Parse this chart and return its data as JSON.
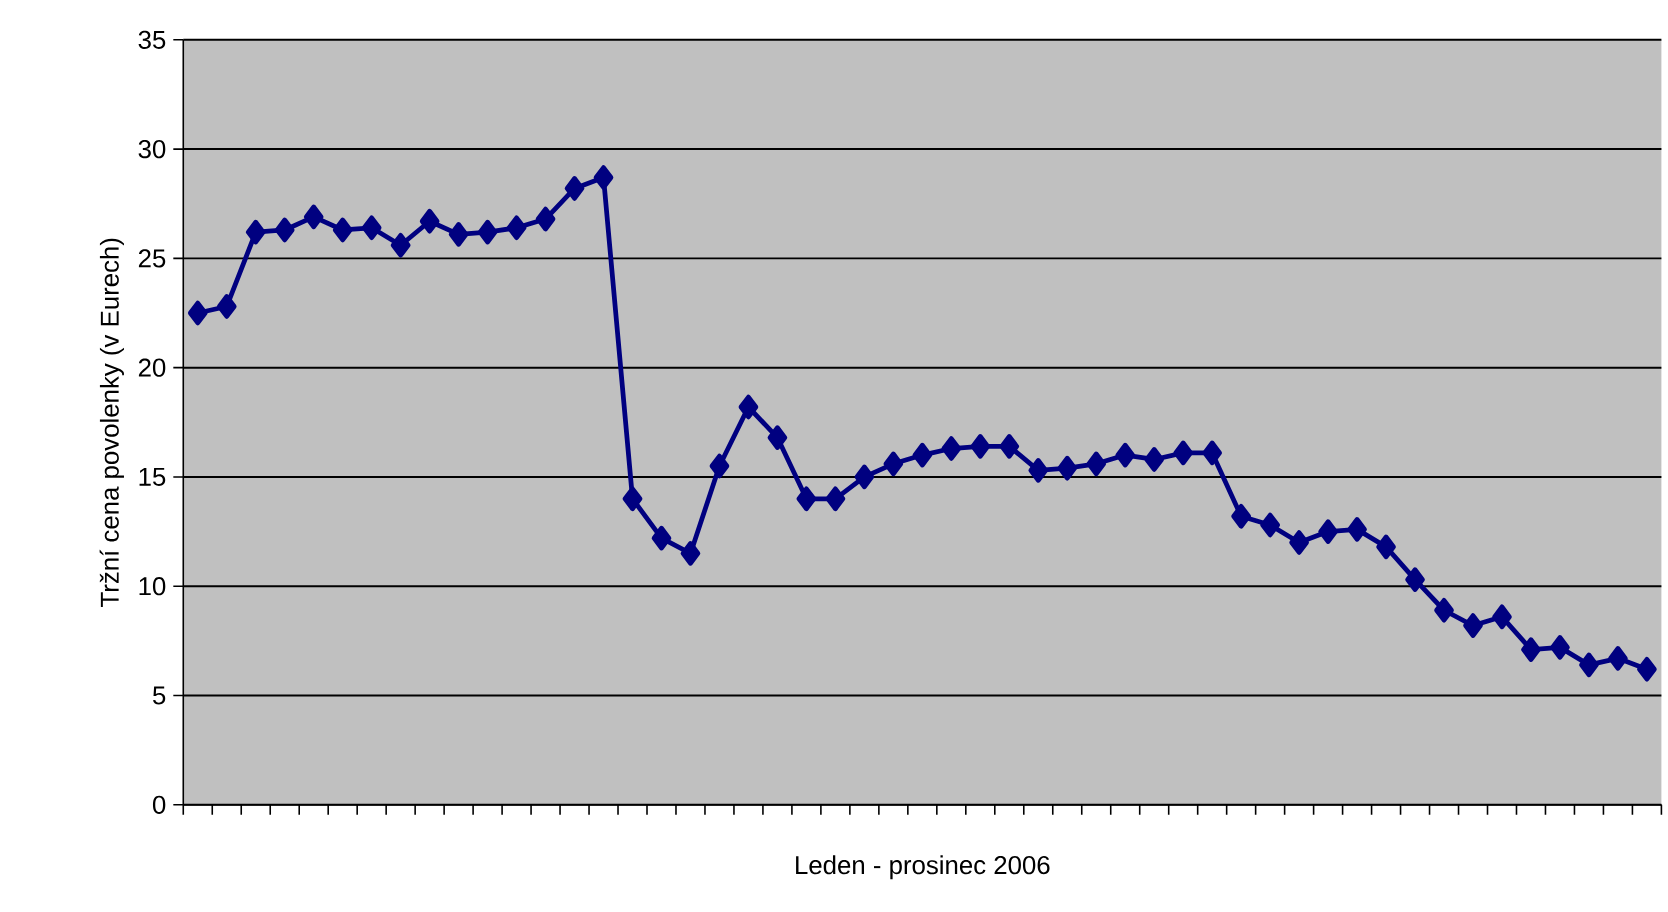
{
  "chart_data": {
    "type": "line",
    "xlabel": "Leden - prosinec 2006",
    "ylabel": "Tržní cena povolenky (v Eurech)",
    "categories": [
      null,
      null,
      null,
      null,
      null,
      null,
      null,
      null,
      null,
      null,
      null,
      null,
      null,
      null,
      null,
      null,
      null,
      null,
      null,
      null,
      null,
      null,
      null,
      null,
      null,
      null,
      null,
      null,
      null,
      null,
      null,
      null,
      null,
      null,
      null,
      null,
      null,
      null,
      null,
      null,
      null,
      null,
      null,
      null,
      null,
      null,
      null,
      null,
      null,
      null,
      null
    ],
    "series": [
      {
        "color": "#000080",
        "values": [
          22.5,
          22.8,
          26.2,
          26.3,
          26.9,
          26.3,
          26.4,
          25.6,
          26.7,
          26.1,
          26.2,
          26.4,
          26.8,
          28.2,
          28.7,
          14.0,
          12.2,
          11.5,
          15.5,
          18.2,
          16.8,
          14.0,
          14.0,
          15.0,
          15.6,
          16.0,
          16.3,
          16.4,
          16.4,
          15.3,
          15.4,
          15.6,
          16.0,
          15.8,
          16.1,
          16.1,
          13.2,
          12.8,
          12.0,
          12.5,
          12.6,
          11.8,
          10.3,
          8.9,
          8.2,
          8.6,
          7.1,
          7.2,
          6.4,
          6.7,
          6.2
        ]
      }
    ],
    "ylim": [
      0,
      35
    ],
    "yticks": [
      0,
      5,
      10,
      15,
      20,
      25,
      30,
      35
    ],
    "grid": "y",
    "marker": "diamond",
    "line_style": "solid"
  }
}
